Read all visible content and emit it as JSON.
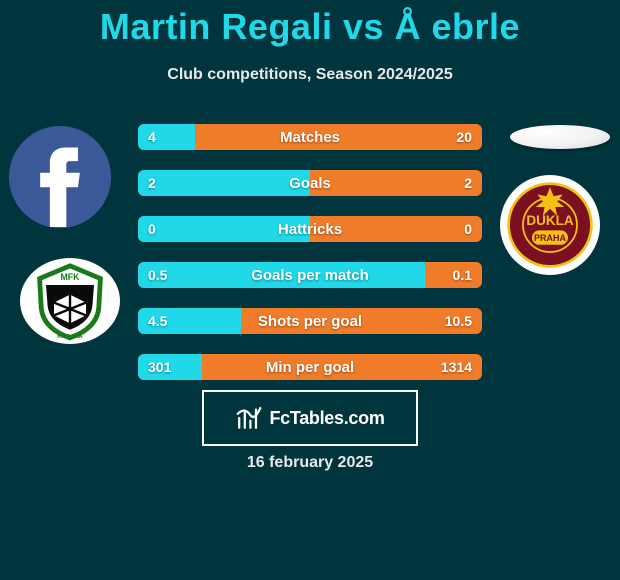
{
  "title": "Martin Regali vs Å ebrle",
  "subtitle": "Club competitions, Season 2024/2025",
  "date": "16 february 2025",
  "footer": {
    "brand_a": "Fc",
    "brand_b": "Tables",
    "brand_c": ".com"
  },
  "colors": {
    "accent": "#20d8e8",
    "bar_right": "#f07c29",
    "bar_left": "#20d8e8",
    "background": "#00353e"
  },
  "bars": [
    {
      "label": "Matches",
      "left_val": "4",
      "right_val": "20",
      "left_pct": 16.7
    },
    {
      "label": "Goals",
      "left_val": "2",
      "right_val": "2",
      "left_pct": 50.0
    },
    {
      "label": "Hattricks",
      "left_val": "0",
      "right_val": "0",
      "left_pct": 50.0
    },
    {
      "label": "Goals per match",
      "left_val": "0.5",
      "right_val": "0.1",
      "left_pct": 83.3
    },
    {
      "label": "Shots per goal",
      "left_val": "4.5",
      "right_val": "10.5",
      "left_pct": 30.0
    },
    {
      "label": "Min per goal",
      "left_val": "301",
      "right_val": "1314",
      "left_pct": 18.6
    }
  ]
}
